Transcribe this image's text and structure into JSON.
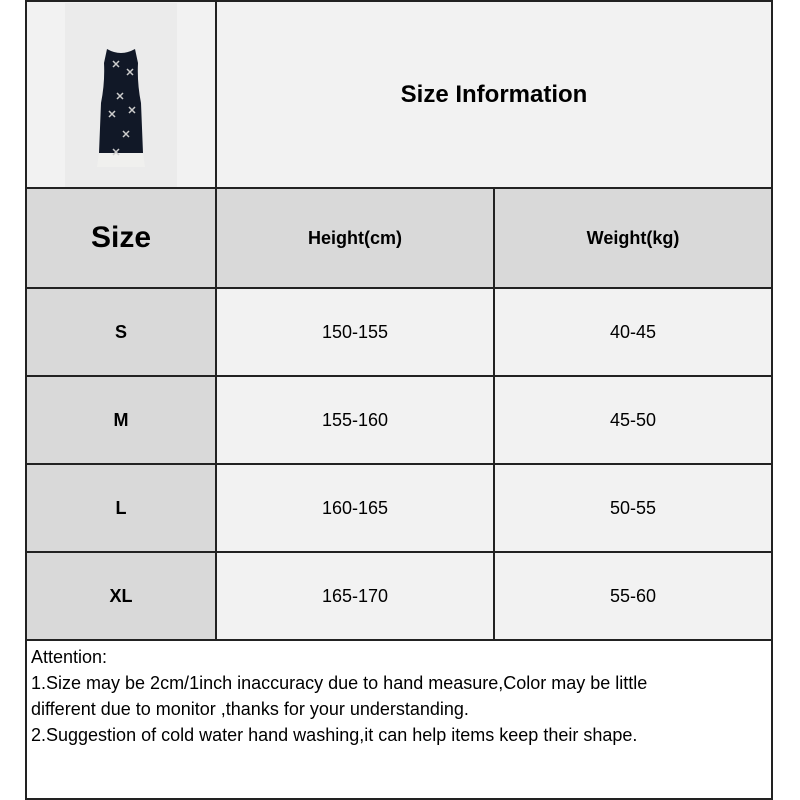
{
  "title": "Size Information",
  "image": {
    "name": "dress-product-image",
    "dress_color": "#111827",
    "hem_color": "#f0f0ee"
  },
  "table": {
    "headers": [
      "Size",
      "Height(cm)",
      "Weight(kg)"
    ],
    "rows": [
      [
        "S",
        "150-155",
        "40-45"
      ],
      [
        "M",
        "155-160",
        "45-50"
      ],
      [
        "L",
        "160-165",
        "50-55"
      ],
      [
        "XL",
        "165-170",
        "55-60"
      ]
    ]
  },
  "attention": {
    "heading": "Attention:",
    "lines": [
      "1.Size may be 2cm/1inch inaccuracy due to hand measure,Color may be little",
      "different due to monitor ,thanks for your understanding.",
      "2.Suggestion of cold water hand washing,it can help items keep their shape."
    ]
  },
  "colors": {
    "header_bg": "#d9d9d9",
    "cell_bg": "#f2f2f2",
    "border": "#222222"
  }
}
